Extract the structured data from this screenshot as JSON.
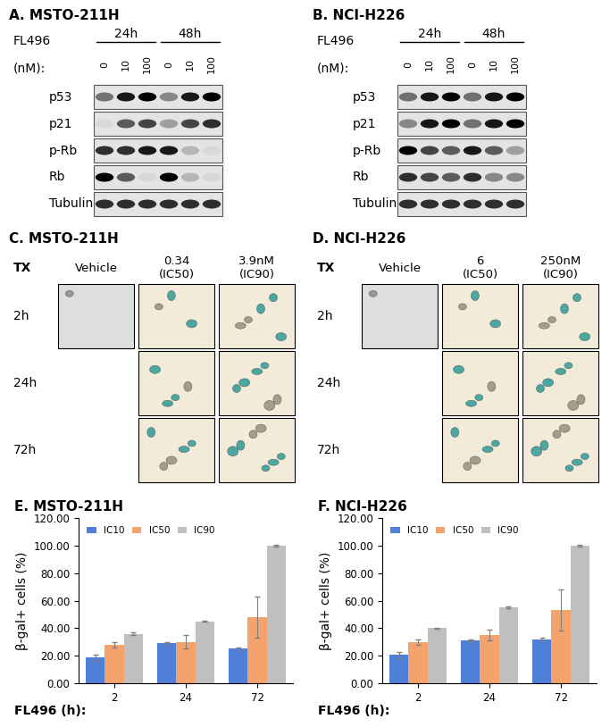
{
  "blots": [
    {
      "label": "A.",
      "title": "MSTO-211H",
      "drug": "FL496",
      "dose_unit": "(nM):",
      "timepoints": [
        "24h",
        "48h"
      ],
      "doses": [
        0,
        10,
        100
      ],
      "proteins": [
        "p53",
        "p21",
        "p-Rb",
        "Rb",
        "Tubulin"
      ],
      "band_intensity": [
        [
          0.5,
          0.9,
          1.0,
          0.4,
          0.9,
          1.0
        ],
        [
          0.05,
          0.6,
          0.7,
          0.3,
          0.7,
          0.8
        ],
        [
          0.8,
          0.8,
          0.9,
          0.9,
          0.2,
          0.05
        ],
        [
          1.0,
          0.6,
          0.05,
          1.0,
          0.2,
          0.05
        ],
        [
          0.8,
          0.8,
          0.8,
          0.8,
          0.8,
          0.8
        ]
      ]
    },
    {
      "label": "B.",
      "title": "NCI-H226",
      "drug": "FL496",
      "dose_unit": "(nM):",
      "timepoints": [
        "24h",
        "48h"
      ],
      "doses": [
        0,
        10,
        100
      ],
      "proteins": [
        "p53",
        "p21",
        "p-Rb",
        "Rb",
        "Tubulin"
      ],
      "band_intensity": [
        [
          0.5,
          0.9,
          1.0,
          0.5,
          0.9,
          1.0
        ],
        [
          0.4,
          0.9,
          1.0,
          0.5,
          0.9,
          1.0
        ],
        [
          1.0,
          0.7,
          0.6,
          0.9,
          0.6,
          0.3
        ],
        [
          0.8,
          0.7,
          0.6,
          0.8,
          0.4,
          0.4
        ],
        [
          0.8,
          0.8,
          0.8,
          0.8,
          0.8,
          0.8
        ]
      ]
    }
  ],
  "micrographs": [
    {
      "label": "C.",
      "title": "MSTO-211H",
      "treatment": "TX",
      "columns": [
        [
          "Vehicle"
        ],
        [
          "0.34",
          "(IC50)"
        ],
        [
          "3.9nM",
          "(IC90)"
        ]
      ],
      "rows": [
        "2h",
        "24h",
        "72h"
      ],
      "shown": [
        [
          true,
          true,
          true
        ],
        [
          false,
          true,
          true
        ],
        [
          false,
          true,
          true
        ]
      ]
    },
    {
      "label": "D.",
      "title": "NCI-H226",
      "treatment": "TX",
      "columns": [
        [
          "Vehicle"
        ],
        [
          "6",
          "(IC50)"
        ],
        [
          "250nM",
          "(IC90)"
        ]
      ],
      "rows": [
        "2h",
        "24h",
        "72h"
      ],
      "shown": [
        [
          true,
          true,
          true
        ],
        [
          false,
          true,
          true
        ],
        [
          false,
          true,
          true
        ]
      ]
    }
  ],
  "chart_data": [
    {
      "type": "bar",
      "label": "E.",
      "title": "MSTO-211H",
      "ylabel": "β-gal+ cells (%)",
      "xlabel": "FL496 (h):",
      "categories": [
        "2",
        "24",
        "72"
      ],
      "series": [
        {
          "name": "IC10",
          "color": "#4f7fd6",
          "values": [
            19,
            29,
            25
          ],
          "errors": [
            2,
            1,
            1
          ]
        },
        {
          "name": "IC50",
          "color": "#f4a36c",
          "values": [
            28,
            30,
            48
          ],
          "errors": [
            2,
            5,
            15
          ]
        },
        {
          "name": "IC90",
          "color": "#bfbfbf",
          "values": [
            36,
            45,
            100
          ],
          "errors": [
            1,
            0.5,
            0.5
          ]
        }
      ],
      "ylim": [
        0,
        120
      ],
      "yticks": [
        {
          "value": 0,
          "label": "0.00"
        },
        {
          "value": 20,
          "label": "20.00"
        },
        {
          "value": 40,
          "label": "40.00"
        },
        {
          "value": 60,
          "label": "60.00"
        },
        {
          "value": 80,
          "label": "80.00"
        },
        {
          "value": 100,
          "label": "100.00"
        },
        {
          "value": 120,
          "label": "120.00"
        }
      ],
      "legend": "upper left"
    },
    {
      "type": "bar",
      "label": "F.",
      "title": "NCI-H226",
      "ylabel": "β-gal+ cells (%)",
      "xlabel": "FL496 (h):",
      "categories": [
        "2",
        "24",
        "72"
      ],
      "series": [
        {
          "name": "IC10",
          "color": "#4f7fd6",
          "values": [
            21,
            31,
            32
          ],
          "errors": [
            2,
            1,
            1
          ]
        },
        {
          "name": "IC50",
          "color": "#f4a36c",
          "values": [
            30,
            35,
            53
          ],
          "errors": [
            2,
            4,
            15
          ]
        },
        {
          "name": "IC90",
          "color": "#bfbfbf",
          "values": [
            40,
            55,
            100
          ],
          "errors": [
            0.5,
            0.5,
            0.5
          ]
        }
      ],
      "ylim": [
        0,
        120
      ],
      "yticks": [
        {
          "value": 0,
          "label": "0.00"
        },
        {
          "value": 20,
          "label": "20.00"
        },
        {
          "value": 40,
          "label": "40.00"
        },
        {
          "value": 60,
          "label": "60.00"
        },
        {
          "value": 80,
          "label": "80.00"
        },
        {
          "value": 100,
          "label": "100.00"
        },
        {
          "value": 120,
          "label": "120.00"
        }
      ],
      "legend": "upper left"
    }
  ]
}
